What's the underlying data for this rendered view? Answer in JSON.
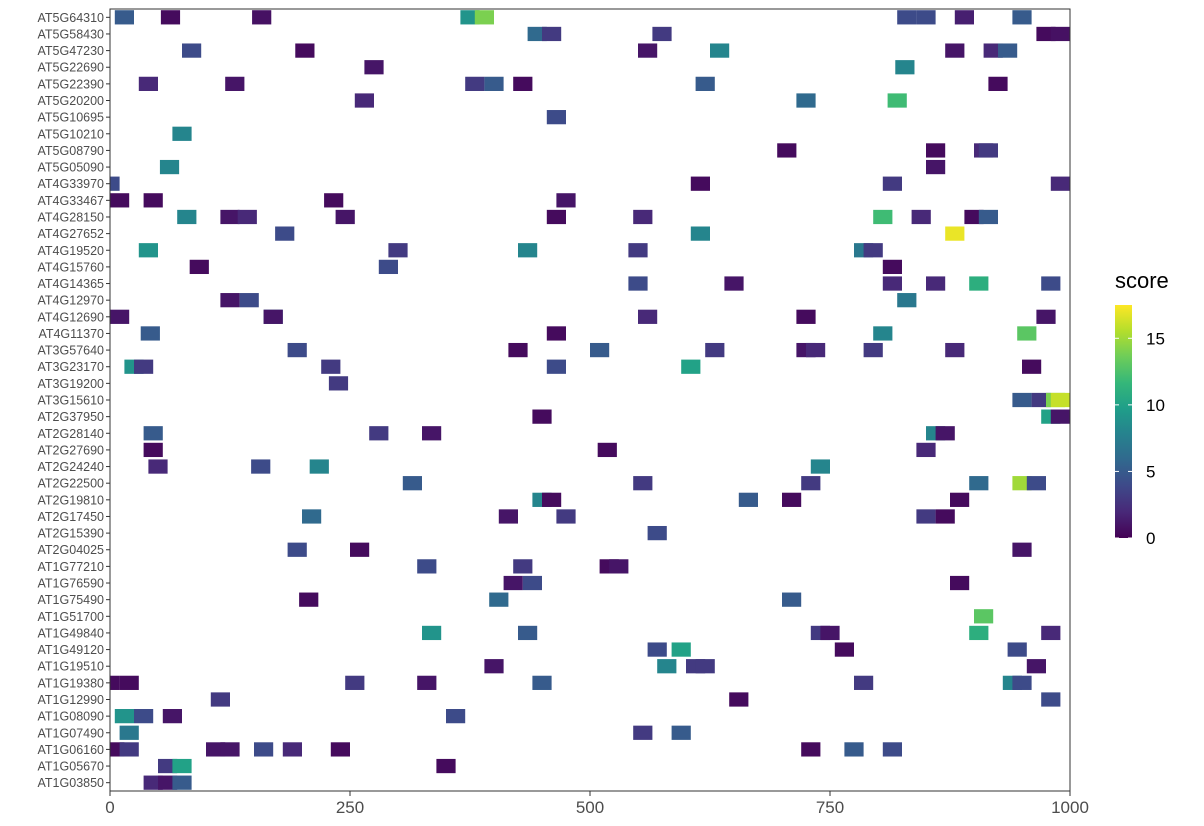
{
  "colors": {
    "viridis": [
      "#440154",
      "#482878",
      "#3E4989",
      "#31688E",
      "#26828E",
      "#1F9E89",
      "#35B779",
      "#6DCD59",
      "#B4DE2C",
      "#FDE725"
    ],
    "axis": "#333333",
    "tick_text": "#4d4d4d"
  },
  "chart_data": {
    "type": "heatmap",
    "xlim": [
      0,
      1000
    ],
    "x_ticks": [
      0,
      250,
      500,
      750,
      1000
    ],
    "x_tick_labels": [
      "0",
      "250",
      "500",
      "750",
      "1000"
    ],
    "legend": {
      "title": "score",
      "placement": "right",
      "range": [
        0,
        17.5
      ],
      "ticks": [
        0,
        5,
        10,
        15
      ],
      "tick_labels": [
        "0",
        "5",
        "10",
        "15"
      ]
    },
    "grid": false,
    "tile_width": 20,
    "genes": [
      "AT5G64310",
      "AT5G58430",
      "AT5G47230",
      "AT5G22690",
      "AT5G22390",
      "AT5G20200",
      "AT5G10695",
      "AT5G10210",
      "AT5G08790",
      "AT5G05090",
      "AT4G33970",
      "AT4G33467",
      "AT4G28150",
      "AT4G27652",
      "AT4G19520",
      "AT4G15760",
      "AT4G14365",
      "AT4G12970",
      "AT4G12690",
      "AT4G11370",
      "AT3G57640",
      "AT3G23170",
      "AT3G19200",
      "AT3G15610",
      "AT2G37950",
      "AT2G28140",
      "AT2G27690",
      "AT2G24240",
      "AT2G22500",
      "AT2G19810",
      "AT2G17450",
      "AT2G15390",
      "AT2G04025",
      "AT1G77210",
      "AT1G76590",
      "AT1G75490",
      "AT1G51700",
      "AT1G49840",
      "AT1G49120",
      "AT1G19510",
      "AT1G19380",
      "AT1G12990",
      "AT1G08090",
      "AT1G07490",
      "AT1G06160",
      "AT1G05670",
      "AT1G03850"
    ],
    "tiles": [
      [
        [
          25,
          5
        ],
        [
          73,
          0.5
        ],
        [
          168,
          0.8
        ],
        [
          385,
          9
        ],
        [
          400,
          14
        ],
        [
          840,
          4
        ],
        [
          860,
          4
        ],
        [
          900,
          1.5
        ],
        [
          960,
          5
        ]
      ],
      [
        [
          455,
          6
        ],
        [
          470,
          3
        ],
        [
          585,
          3
        ],
        [
          985,
          0.5
        ],
        [
          1000,
          0.8
        ]
      ],
      [
        [
          95,
          4
        ],
        [
          213,
          0.5
        ],
        [
          570,
          1
        ],
        [
          645,
          8
        ],
        [
          890,
          1
        ],
        [
          930,
          2
        ],
        [
          945,
          5
        ]
      ],
      [
        [
          285,
          1
        ],
        [
          838,
          8
        ]
      ],
      [
        [
          50,
          2
        ],
        [
          140,
          1
        ],
        [
          390,
          3
        ],
        [
          410,
          5
        ],
        [
          440,
          0.5
        ],
        [
          630,
          5
        ],
        [
          935,
          0.5
        ]
      ],
      [
        [
          275,
          2
        ],
        [
          735,
          6
        ],
        [
          830,
          12
        ]
      ],
      [
        [
          475,
          4
        ]
      ],
      [
        [
          85,
          8
        ]
      ],
      [
        [
          715,
          0.5
        ],
        [
          870,
          0.5
        ],
        [
          920,
          2
        ],
        [
          925,
          3
        ]
      ],
      [
        [
          72,
          8
        ],
        [
          870,
          1
        ]
      ],
      [
        [
          10,
          4
        ],
        [
          625,
          0.5
        ],
        [
          825,
          3
        ],
        [
          1000,
          2
        ]
      ],
      [
        [
          20,
          0.5
        ],
        [
          55,
          0.5
        ],
        [
          243,
          0.5
        ],
        [
          485,
          1
        ]
      ],
      [
        [
          90,
          8
        ],
        [
          135,
          1
        ],
        [
          153,
          2
        ],
        [
          255,
          1
        ],
        [
          475,
          0.5
        ],
        [
          565,
          2
        ],
        [
          815,
          12
        ],
        [
          855,
          2
        ],
        [
          910,
          0.5
        ],
        [
          925,
          5
        ]
      ],
      [
        [
          192,
          4
        ],
        [
          625,
          8
        ],
        [
          890,
          17
        ]
      ],
      [
        [
          50,
          9
        ],
        [
          310,
          3
        ],
        [
          445,
          8
        ],
        [
          560,
          3
        ],
        [
          795,
          7
        ],
        [
          805,
          3
        ]
      ],
      [
        [
          103,
          0.5
        ],
        [
          300,
          4
        ],
        [
          825,
          0.5
        ]
      ],
      [
        [
          560,
          4
        ],
        [
          660,
          1
        ],
        [
          825,
          2
        ],
        [
          870,
          2
        ],
        [
          915,
          11
        ],
        [
          990,
          4
        ]
      ],
      [
        [
          135,
          1
        ],
        [
          155,
          4
        ],
        [
          840,
          7
        ]
      ],
      [
        [
          20,
          1
        ],
        [
          180,
          7
        ],
        [
          180,
          1
        ],
        [
          570,
          2
        ],
        [
          735,
          0.5
        ],
        [
          985,
          1
        ]
      ],
      [
        [
          52,
          5
        ],
        [
          475,
          0.5
        ],
        [
          815,
          8
        ],
        [
          965,
          13
        ]
      ],
      [
        [
          205,
          4
        ],
        [
          435,
          0.5
        ],
        [
          520,
          5
        ],
        [
          640,
          3
        ],
        [
          735,
          1
        ],
        [
          745,
          2
        ],
        [
          805,
          3
        ],
        [
          890,
          2
        ]
      ],
      [
        [
          35,
          9
        ],
        [
          45,
          3
        ],
        [
          240,
          3
        ],
        [
          475,
          4
        ],
        [
          615,
          10
        ],
        [
          970,
          0.5
        ]
      ],
      [
        [
          248,
          3
        ]
      ],
      [
        [
          960,
          5
        ],
        [
          980,
          3
        ],
        [
          995,
          14
        ],
        [
          1000,
          16
        ]
      ],
      [
        [
          460,
          0.5
        ],
        [
          990,
          10
        ],
        [
          1000,
          1
        ]
      ],
      [
        [
          55,
          5
        ],
        [
          290,
          3
        ],
        [
          345,
          1
        ],
        [
          870,
          8
        ],
        [
          880,
          1
        ]
      ],
      [
        [
          55,
          0.5
        ],
        [
          528,
          0.5
        ],
        [
          860,
          2
        ]
      ],
      [
        [
          60,
          2
        ],
        [
          167,
          4
        ],
        [
          228,
          8
        ],
        [
          750,
          8
        ]
      ],
      [
        [
          325,
          5
        ],
        [
          565,
          3
        ],
        [
          740,
          3
        ],
        [
          915,
          6
        ],
        [
          960,
          15
        ],
        [
          975,
          4
        ]
      ],
      [
        [
          460,
          8
        ],
        [
          470,
          0.5
        ],
        [
          675,
          5
        ],
        [
          720,
          0.5
        ],
        [
          895,
          0.5
        ]
      ],
      [
        [
          220,
          6
        ],
        [
          425,
          1
        ],
        [
          485,
          3
        ],
        [
          860,
          3
        ],
        [
          880,
          0.5
        ]
      ],
      [
        [
          580,
          4
        ]
      ],
      [
        [
          205,
          4
        ],
        [
          270,
          0.5
        ],
        [
          960,
          1
        ]
      ],
      [
        [
          340,
          4
        ],
        [
          440,
          3
        ],
        [
          530,
          0.5
        ],
        [
          540,
          1
        ]
      ],
      [
        [
          430,
          1
        ],
        [
          450,
          4
        ],
        [
          895,
          0.5
        ]
      ],
      [
        [
          217,
          0.5
        ],
        [
          415,
          6
        ],
        [
          720,
          5
        ]
      ],
      [
        [
          920,
          13
        ]
      ],
      [
        [
          345,
          9
        ],
        [
          445,
          5
        ],
        [
          750,
          3
        ],
        [
          760,
          1
        ],
        [
          915,
          11
        ],
        [
          990,
          2
        ]
      ],
      [
        [
          580,
          4
        ],
        [
          605,
          10
        ],
        [
          775,
          0.5
        ],
        [
          955,
          4
        ]
      ],
      [
        [
          410,
          1
        ],
        [
          590,
          8
        ],
        [
          620,
          3
        ],
        [
          630,
          3
        ],
        [
          975,
          1
        ]
      ],
      [
        [
          10,
          0.5
        ],
        [
          30,
          0.5
        ],
        [
          265,
          3
        ],
        [
          340,
          1
        ],
        [
          460,
          5
        ],
        [
          795,
          3
        ],
        [
          950,
          8
        ],
        [
          960,
          4
        ]
      ],
      [
        [
          125,
          3
        ],
        [
          665,
          0.5
        ],
        [
          990,
          4
        ]
      ],
      [
        [
          25,
          9
        ],
        [
          45,
          4
        ],
        [
          75,
          1
        ],
        [
          370,
          4
        ]
      ],
      [
        [
          30,
          7
        ],
        [
          565,
          3
        ],
        [
          605,
          5
        ]
      ],
      [
        [
          15,
          0.5
        ],
        [
          30,
          3
        ],
        [
          120,
          1
        ],
        [
          135,
          1
        ],
        [
          170,
          4
        ],
        [
          200,
          2
        ],
        [
          250,
          0.5
        ],
        [
          740,
          0.5
        ],
        [
          785,
          5
        ],
        [
          825,
          4
        ]
      ],
      [
        [
          70,
          3
        ],
        [
          85,
          10
        ],
        [
          360,
          0.5
        ]
      ],
      [
        [
          55,
          2
        ],
        [
          70,
          1
        ],
        [
          85,
          5
        ]
      ]
    ]
  }
}
